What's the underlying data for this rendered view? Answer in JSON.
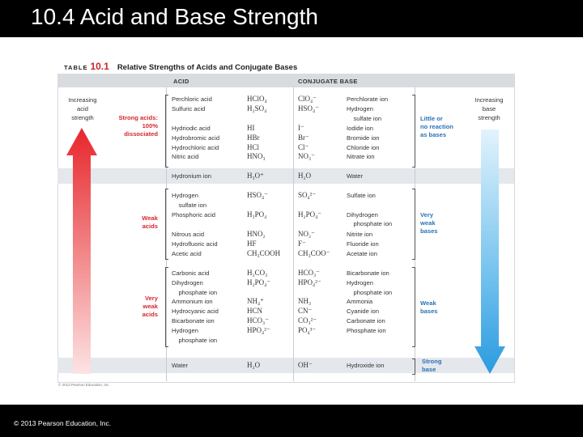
{
  "slide": {
    "title": "10.4 Acid and Base Strength",
    "copyright": "© 2013 Pearson Education, Inc."
  },
  "table": {
    "label_word": "TABLE",
    "label_number": "10.1",
    "title": "Relative Strengths of Acids and Conjugate Bases",
    "col_acid": "ACID",
    "col_base": "CONJUGATE BASE",
    "increasing_acid": "Increasing\nacid\nstrength",
    "increasing_base": "Increasing\nbase\nstrength",
    "credit": "© 2013 Pearson Education, Inc.",
    "acid_groups": {
      "strong": "Strong acids:\n100%\ndissociated",
      "weak": "Weak\nacids",
      "very_weak": "Very\nweak\nacids"
    },
    "base_groups": {
      "little": "Little or\nno reaction\nas bases",
      "very_weak": "Very\nweak\nbases",
      "weak": "Weak\nbases",
      "strong": "Strong\nbase"
    },
    "sections": {
      "strong1": {
        "acid_names": "Perchloric acid\nSulfuric acid",
        "acid_formulas": "HClO₄\nH₂SO₄",
        "base_formulas": "ClO₄⁻\nHSO₄⁻",
        "base_names": "Perchlorate ion\nHydrogen\n    sulfate ion"
      },
      "strong2": {
        "acid_names": "Hydriodic acid\nHydrobromic acid\nHydrochloric acid\nNitric acid",
        "acid_formulas": "HI\nHBr\nHCl\nHNO₃",
        "base_formulas": "I⁻\nBr⁻\nCl⁻\nNO₃⁻",
        "base_names": "Iodide ion\nBromide ion\nChloride ion\nNitrate ion"
      },
      "hydronium": {
        "acid_names": "Hydronium ion",
        "acid_formulas": "H₃O⁺",
        "base_formulas": "H₂O",
        "base_names": "Water"
      },
      "weak1": {
        "acid_names": "Hydrogen\n    sulfate ion\nPhosphoric acid",
        "acid_formulas": "HSO₄⁻\n\nH₃PO₄",
        "base_formulas": "SO₄²⁻\n\nH₂PO₄⁻",
        "base_names": "Sulfate ion\n\nDihydrogen\n    phosphate ion"
      },
      "weak2": {
        "acid_names": "Nitrous acid\nHydrofluoric acid\nAcetic acid",
        "acid_formulas": "HNO₂\nHF\nCH₃COOH",
        "base_formulas": "NO₂⁻\nF⁻\nCH₃COO⁻",
        "base_names": "Nitrite ion\nFluoride ion\nAcetate ion"
      },
      "very_weak": {
        "acid_names": "Carbonic acid\nDihydrogen\n    phosphate ion\nAmmonium ion\nHydrocyanic acid\nBicarbonate ion\nHydrogen\n    phosphate ion",
        "acid_formulas": "H₂CO₃\nH₂PO₄⁻\n\nNH₄⁺\nHCN\nHCO₃⁻\nHPO₄²⁻",
        "base_formulas": "HCO₃⁻\nHPO₄²⁻\n\nNH₃\nCN⁻\nCO₃²⁻\nPO₄³⁻",
        "base_names": "Bicarbonate ion\nHydrogen\n    phosphate ion\nAmmonia\nCyanide ion\nCarbonate ion\nPhosphate ion"
      },
      "water": {
        "acid_names": "Water",
        "acid_formulas": "H₂O",
        "base_formulas": "OH⁻",
        "base_names": "Hydroxide ion"
      }
    },
    "colors": {
      "acid_arrow": "#e8262b",
      "base_arrow": "#2a9be0",
      "acid_text": "#d7262d",
      "base_text": "#2a73b8",
      "header_bg": "#d8dbe0"
    }
  }
}
